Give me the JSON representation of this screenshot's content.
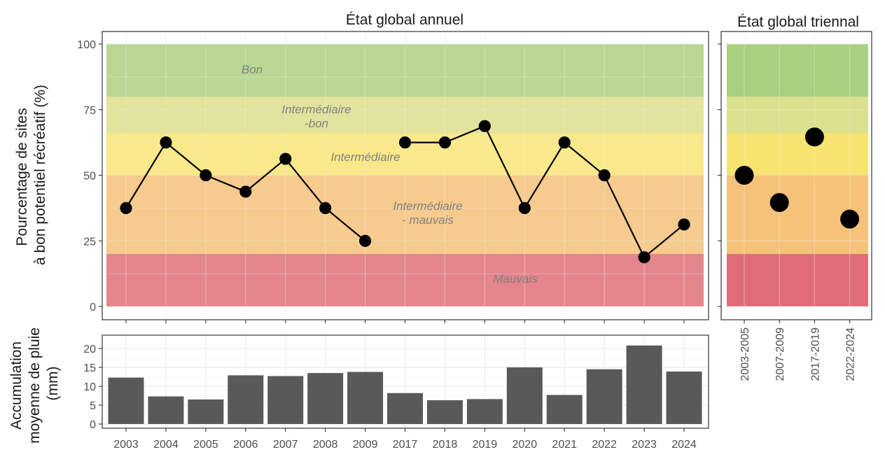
{
  "chart_data": [
    {
      "type": "line",
      "title": "État global annuel",
      "ylabel_lines": [
        "Pourcentage de sites",
        "à bon potentiel récréatif (%)"
      ],
      "ylim": [
        0,
        100
      ],
      "yticks": [
        0,
        25,
        50,
        75,
        100
      ],
      "categories": [
        "2003",
        "2004",
        "2005",
        "2006",
        "2007",
        "2008",
        "2009",
        "2017",
        "2018",
        "2019",
        "2020",
        "2021",
        "2022",
        "2023",
        "2024"
      ],
      "segments": [
        {
          "x": [
            "2003",
            "2004",
            "2005",
            "2006",
            "2007",
            "2008",
            "2009"
          ],
          "values": [
            37.5,
            62.5,
            50.0,
            43.75,
            56.25,
            37.5,
            25.0
          ]
        },
        {
          "x": [
            "2017",
            "2018",
            "2019",
            "2020",
            "2021",
            "2022",
            "2023",
            "2024"
          ],
          "values": [
            62.5,
            62.5,
            68.75,
            37.5,
            62.5,
            50.0,
            18.75,
            31.25
          ]
        }
      ],
      "zones": [
        {
          "label": "Bon",
          "from": 80,
          "to": 100,
          "color": "#b9d793"
        },
        {
          "label": "Intermédiaire\n-bon",
          "from": 66,
          "to": 80,
          "color": "#e2e39c"
        },
        {
          "label": "Intermédiaire",
          "from": 50,
          "to": 66,
          "color": "#f9e98a"
        },
        {
          "label": "Intermédiaire\n- mauvais",
          "from": 20,
          "to": 50,
          "color": "#f6cb8d"
        },
        {
          "label": "Mauvais",
          "from": 0,
          "to": 20,
          "color": "#e4848d"
        }
      ],
      "grid": true
    },
    {
      "type": "scatter",
      "title": "État global triennal",
      "ylim": [
        0,
        100
      ],
      "categories": [
        "2003-2005",
        "2007-2009",
        "2017-2019",
        "2022-2024"
      ],
      "values": [
        50.0,
        39.6,
        64.6,
        33.3
      ],
      "zones": [
        {
          "from": 80,
          "to": 100,
          "color": "#a9cf81"
        },
        {
          "from": 66,
          "to": 80,
          "color": "#dbe08e"
        },
        {
          "from": 50,
          "to": 66,
          "color": "#f7e36f"
        },
        {
          "from": 20,
          "to": 50,
          "color": "#f5c27a"
        },
        {
          "from": 0,
          "to": 20,
          "color": "#df6c78"
        }
      ],
      "grid": true
    },
    {
      "type": "bar",
      "ylabel_lines": [
        "Accumulation",
        "moyenne de pluie",
        "(mm)"
      ],
      "ylim": [
        0,
        21.5
      ],
      "yticks": [
        0,
        5,
        10,
        15,
        20
      ],
      "categories": [
        "2003",
        "2004",
        "2005",
        "2006",
        "2007",
        "2008",
        "2009",
        "2017",
        "2018",
        "2019",
        "2020",
        "2021",
        "2022",
        "2023",
        "2024"
      ],
      "values": [
        12.3,
        7.3,
        6.5,
        12.9,
        12.7,
        13.5,
        13.8,
        8.2,
        6.3,
        6.6,
        15.0,
        7.7,
        14.5,
        20.8,
        13.9
      ],
      "bar_color": "#595959",
      "grid": true
    }
  ]
}
